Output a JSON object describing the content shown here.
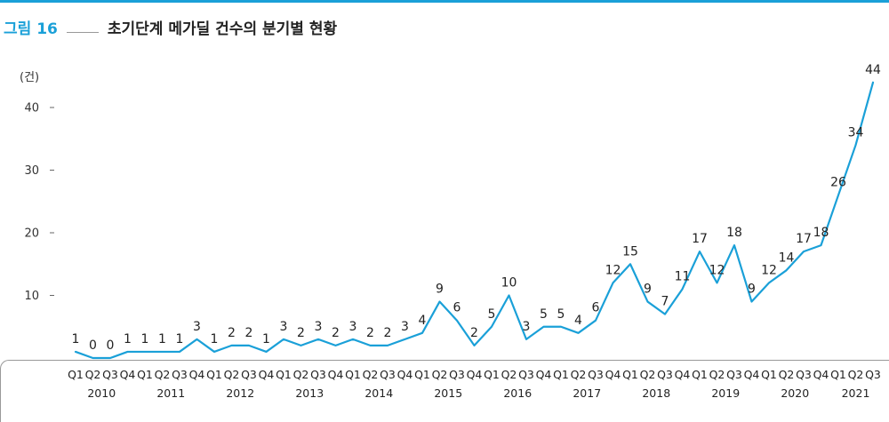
{
  "header": {
    "figure_label": "그림 16",
    "title": "초기단계 메가딜 건수의 분기별 현황"
  },
  "chart_data": {
    "type": "line",
    "title": "초기단계 메가딜 건수의 분기별 현황",
    "ylabel": "(건)",
    "xlabel": "",
    "ylim": [
      0,
      44
    ],
    "yticks": [
      10,
      20,
      30,
      40
    ],
    "grid": false,
    "line_color": "#1aa0d8",
    "years": [
      "2010",
      "2011",
      "2012",
      "2013",
      "2014",
      "2015",
      "2016",
      "2017",
      "2018",
      "2019",
      "2020",
      "2021"
    ],
    "categories": [
      "Q1",
      "Q2",
      "Q3",
      "Q4",
      "Q1",
      "Q2",
      "Q3",
      "Q4",
      "Q1",
      "Q2",
      "Q3",
      "Q4",
      "Q1",
      "Q2",
      "Q3",
      "Q4",
      "Q1",
      "Q2",
      "Q3",
      "Q4",
      "Q1",
      "Q2",
      "Q3",
      "Q4",
      "Q1",
      "Q2",
      "Q3",
      "Q4",
      "Q1",
      "Q2",
      "Q3",
      "Q4",
      "Q1",
      "Q2",
      "Q3",
      "Q4",
      "Q1",
      "Q2",
      "Q3",
      "Q4",
      "Q1",
      "Q2",
      "Q3",
      "Q4",
      "Q1",
      "Q2",
      "Q3"
    ],
    "values": [
      1,
      0,
      0,
      1,
      1,
      1,
      1,
      3,
      1,
      2,
      2,
      1,
      3,
      2,
      3,
      2,
      3,
      2,
      2,
      3,
      4,
      9,
      6,
      2,
      5,
      10,
      3,
      5,
      5,
      4,
      6,
      12,
      15,
      9,
      7,
      11,
      17,
      12,
      18,
      9,
      12,
      14,
      17,
      18,
      26,
      34,
      44
    ]
  }
}
